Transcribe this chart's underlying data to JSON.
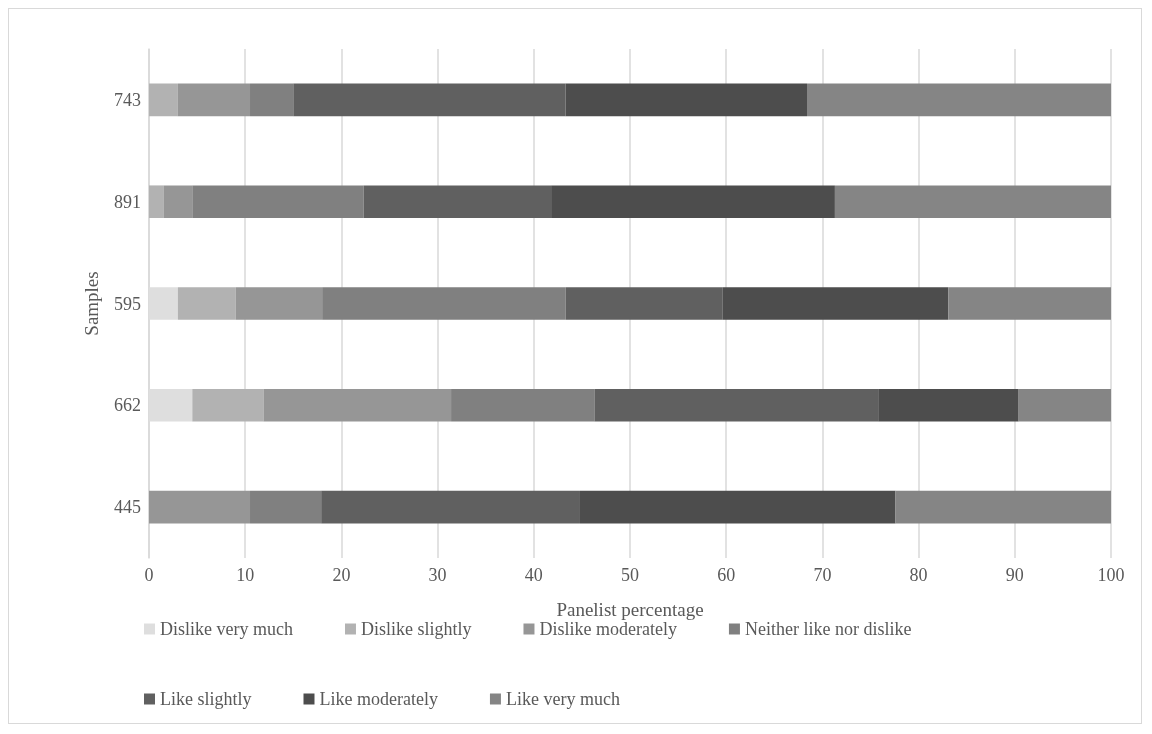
{
  "chart_data": {
    "type": "bar",
    "orientation": "horizontal",
    "stacked": true,
    "xlabel": "Panelist percentage",
    "ylabel": "Samples",
    "categories": [
      "743",
      "891",
      "595",
      "662",
      "445"
    ],
    "series": [
      {
        "name": "Dislike very much",
        "color": "#dedede",
        "values": [
          0,
          0,
          3.0,
          4.5,
          0
        ]
      },
      {
        "name": "Dislike slightly",
        "color": "#b2b2b2",
        "values": [
          3.0,
          1.5,
          6.0,
          7.4,
          0
        ]
      },
      {
        "name": "Dislike moderately",
        "color": "#969696",
        "values": [
          7.5,
          3.0,
          9.0,
          19.5,
          10.5
        ]
      },
      {
        "name": "Neither like nor dislike",
        "color": "#808080",
        "values": [
          4.5,
          17.8,
          25.3,
          14.9,
          7.4
        ]
      },
      {
        "name": "Like slightly",
        "color": "#606060",
        "values": [
          28.3,
          19.5,
          16.3,
          29.5,
          26.9
        ]
      },
      {
        "name": "Like moderately",
        "color": "#4d4d4d",
        "values": [
          25.1,
          29.5,
          23.5,
          14.6,
          32.8
        ]
      },
      {
        "name": "Like very much",
        "color": "#858585",
        "values": [
          31.6,
          28.7,
          16.9,
          9.6,
          22.4
        ]
      }
    ],
    "xlim": [
      0,
      100
    ],
    "xticks": [
      0,
      10,
      20,
      30,
      40,
      50,
      60,
      70,
      80,
      90,
      100
    ],
    "grid": "x",
    "legend": "bottom"
  }
}
